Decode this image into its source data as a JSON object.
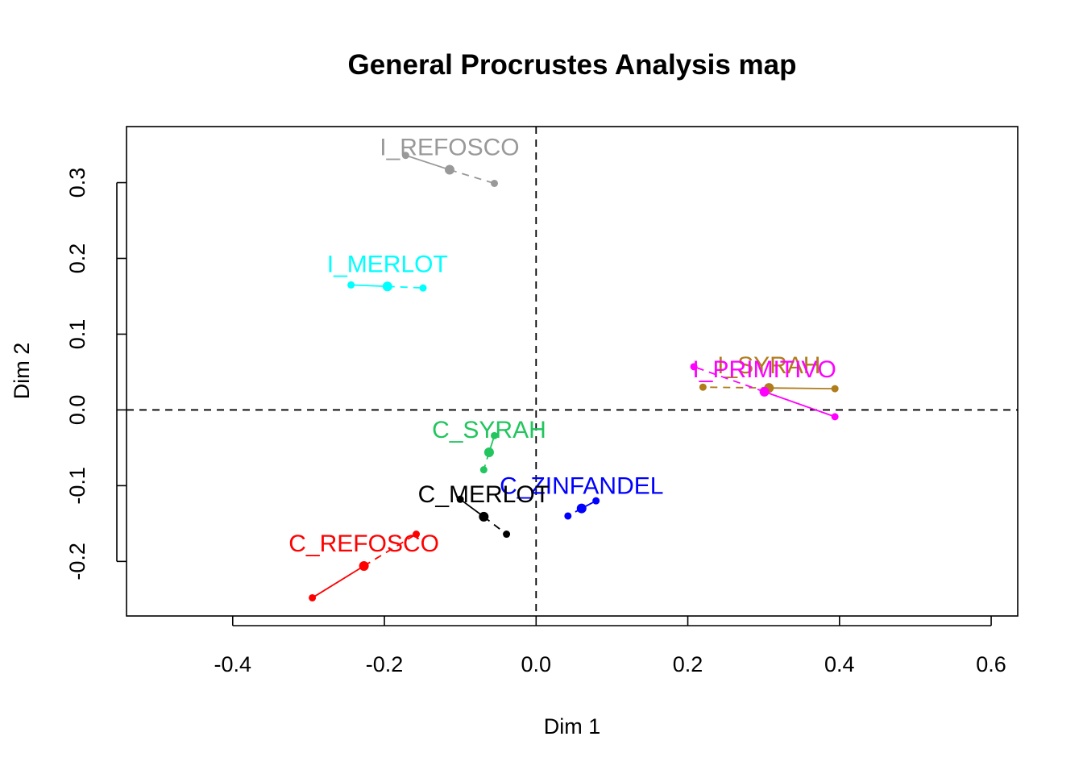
{
  "chart_data": {
    "type": "scatter",
    "title": "General Procrustes Analysis map",
    "xlabel": "Dim 1",
    "ylabel": "Dim 2",
    "xlim": [
      -0.54,
      0.635
    ],
    "ylim": [
      -0.272,
      0.374
    ],
    "xticks": [
      -0.4,
      -0.2,
      0.0,
      0.2,
      0.4,
      0.6
    ],
    "xtick_labels": [
      "-0.4",
      "-0.2",
      "0.0",
      "0.2",
      "0.4",
      "0.6"
    ],
    "yticks": [
      -0.2,
      -0.1,
      0.0,
      0.1,
      0.2,
      0.3
    ],
    "ytick_labels": [
      "-0.2",
      "-0.1",
      "0.0",
      "0.1",
      "0.2",
      "0.3"
    ],
    "reference_lines": {
      "x": 0,
      "y": 0,
      "style": "dashed"
    },
    "grid": false,
    "items": [
      {
        "name": "I_REFOSCO",
        "color": "#999999",
        "mean": [
          -0.114,
          0.317
        ],
        "solid_end": [
          -0.172,
          0.336
        ],
        "dashed_end": [
          -0.055,
          0.299
        ]
      },
      {
        "name": "I_MERLOT",
        "color": "#00ffff",
        "mean": [
          -0.196,
          0.163
        ],
        "solid_end": [
          -0.244,
          0.165
        ],
        "dashed_end": [
          -0.149,
          0.161
        ]
      },
      {
        "name": "I_SYRAH",
        "color": "#b07c1c",
        "mean": [
          0.307,
          0.029
        ],
        "solid_end": [
          0.394,
          0.028
        ],
        "dashed_end": [
          0.22,
          0.03
        ]
      },
      {
        "name": "I_PRIMITIVO",
        "color": "#ff00ff",
        "mean": [
          0.301,
          0.024
        ],
        "solid_end": [
          0.394,
          -0.009
        ],
        "dashed_end": [
          0.208,
          0.057
        ]
      },
      {
        "name": "C_SYRAH",
        "color": "#22c55e",
        "mean": [
          -0.062,
          -0.056
        ],
        "solid_end": [
          -0.055,
          -0.034
        ],
        "dashed_end": [
          -0.069,
          -0.079
        ]
      },
      {
        "name": "C_ZINFANDEL",
        "color": "#0000ff",
        "mean": [
          0.06,
          -0.13
        ],
        "solid_end": [
          0.079,
          -0.12
        ],
        "dashed_end": [
          0.042,
          -0.14
        ]
      },
      {
        "name": "C_MERLOT",
        "color": "#000000",
        "mean": [
          -0.069,
          -0.141
        ],
        "solid_end": [
          -0.1,
          -0.118
        ],
        "dashed_end": [
          -0.039,
          -0.164
        ]
      },
      {
        "name": "C_REFOSCO",
        "color": "#ff0000",
        "mean": [
          -0.227,
          -0.206
        ],
        "solid_end": [
          -0.295,
          -0.248
        ],
        "dashed_end": [
          -0.158,
          -0.164
        ]
      }
    ]
  }
}
